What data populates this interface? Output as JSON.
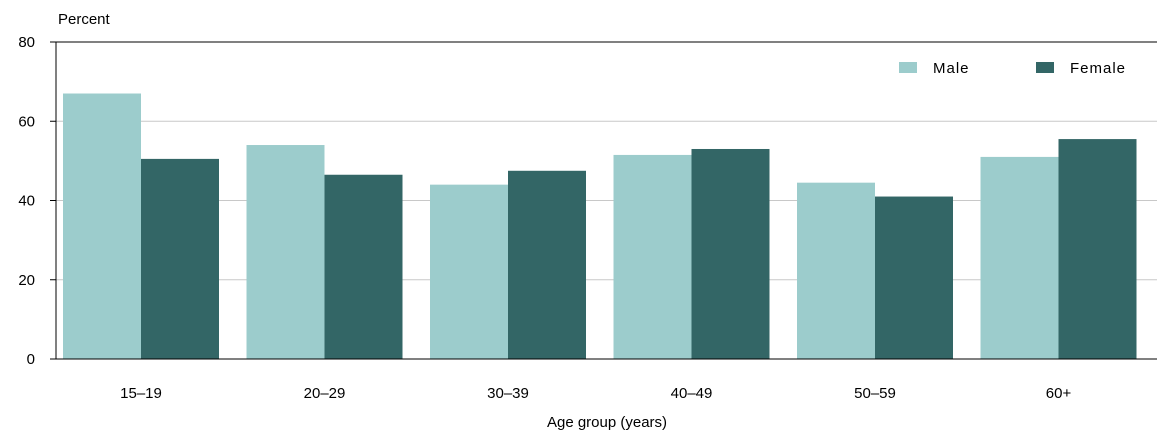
{
  "chart_data": {
    "type": "bar",
    "title": "",
    "xlabel": "Age group (years)",
    "ylabel": "Percent",
    "ylim": [
      0,
      80
    ],
    "yticks": [
      0,
      20,
      40,
      60,
      80
    ],
    "grid": true,
    "legend": "top-right",
    "categories": [
      "15–19",
      "20–29",
      "30–39",
      "40–49",
      "50–59",
      "60+"
    ],
    "series": [
      {
        "name": "Male",
        "color": "#9ccccc",
        "values": [
          67.0,
          54.0,
          44.0,
          51.5,
          44.5,
          51.0
        ]
      },
      {
        "name": "Female",
        "color": "#336666",
        "values": [
          50.5,
          46.5,
          47.5,
          53.0,
          41.0,
          55.5
        ]
      }
    ]
  }
}
